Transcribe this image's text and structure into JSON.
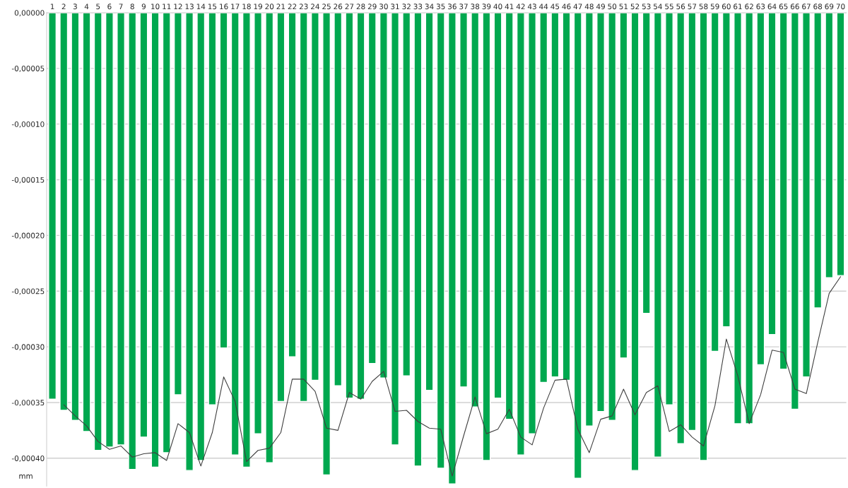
{
  "chart_data": {
    "type": "bar",
    "ylabel": "mm",
    "categories": [
      "1",
      "2",
      "3",
      "4",
      "5",
      "6",
      "7",
      "8",
      "9",
      "10",
      "11",
      "12",
      "13",
      "14",
      "15",
      "16",
      "17",
      "18",
      "19",
      "20",
      "21",
      "22",
      "23",
      "24",
      "25",
      "26",
      "27",
      "28",
      "29",
      "30",
      "31",
      "32",
      "33",
      "34",
      "35",
      "36",
      "37",
      "38",
      "39",
      "40",
      "41",
      "42",
      "43",
      "44",
      "45",
      "46",
      "47",
      "48",
      "49",
      "50",
      "51",
      "52",
      "53",
      "54",
      "55",
      "56",
      "57",
      "58",
      "59",
      "60",
      "61",
      "62",
      "63",
      "64",
      "65",
      "66",
      "67",
      "68",
      "69",
      "70"
    ],
    "series": [
      {
        "color": "#00a84f",
        "values": [
          -0.000347,
          -0.000357,
          -0.000366,
          -0.000376,
          -0.000393,
          -0.00039,
          -0.000388,
          -0.00041,
          -0.000381,
          -0.000408,
          -0.000395,
          -0.000343,
          -0.000411,
          -0.000402,
          -0.000352,
          -0.000301,
          -0.000397,
          -0.000408,
          -0.000378,
          -0.000404,
          -0.000349,
          -0.000309,
          -0.000349,
          -0.00033,
          -0.000415,
          -0.000335,
          -0.000346,
          -0.000347,
          -0.000315,
          -0.000328,
          -0.000388,
          -0.000326,
          -0.000407,
          -0.000339,
          -0.000409,
          -0.000423,
          -0.000336,
          -0.000354,
          -0.000402,
          -0.000346,
          -0.000365,
          -0.000397,
          -0.000378,
          -0.000332,
          -0.000327,
          -0.00033,
          -0.000418,
          -0.000371,
          -0.000358,
          -0.000366,
          -0.00031,
          -0.000411,
          -0.00027,
          -0.000399,
          -0.000352,
          -0.000387,
          -0.000375,
          -0.000402,
          -0.000304,
          -0.000282,
          -0.000369,
          -0.000369,
          -0.000316,
          -0.000289,
          -0.00032,
          -0.000356,
          -0.000327,
          -0.000265,
          -0.000238,
          -0.000236
        ]
      },
      {
        "type": "line",
        "color": "#404040",
        "values": [
          null,
          -0.000352,
          -0.000362,
          -0.000371,
          -0.000385,
          -0.000392,
          -0.000389,
          -0.000399,
          -0.000396,
          -0.000395,
          -0.000402,
          -0.000369,
          -0.000377,
          -0.000407,
          -0.000377,
          -0.000327,
          -0.000349,
          -0.000403,
          -0.000393,
          -0.000391,
          -0.000377,
          -0.000329,
          -0.000329,
          -0.00034,
          -0.000373,
          -0.000375,
          -0.000341,
          -0.000347,
          -0.000331,
          -0.000322,
          -0.000358,
          -0.000357,
          -0.000367,
          -0.000373,
          -0.000374,
          -0.000416,
          -0.00038,
          -0.000345,
          -0.000378,
          -0.000374,
          -0.000356,
          -0.000381,
          -0.000388,
          -0.000355,
          -0.00033,
          -0.000329,
          -0.000374,
          -0.000395,
          -0.000365,
          -0.000362,
          -0.000338,
          -0.000361,
          -0.000341,
          -0.000335,
          -0.000376,
          -0.00037,
          -0.000381,
          -0.000389,
          -0.000353,
          -0.000293,
          -0.000326,
          -0.000369,
          -0.000343,
          -0.000303,
          -0.000305,
          -0.000338,
          -0.000342,
          -0.000296,
          -0.000252,
          -0.000237
        ]
      }
    ],
    "ylim": [
      -0.000425,
      0
    ],
    "yticks": [
      {
        "value": 0,
        "label": "0,00000"
      },
      {
        "value": -5e-05,
        "label": "-0,00005"
      },
      {
        "value": -0.0001,
        "label": "-0,00010"
      },
      {
        "value": -0.00015,
        "label": "-0,00015"
      },
      {
        "value": -0.0002,
        "label": "-0,00020"
      },
      {
        "value": -0.00025,
        "label": "-0,00025"
      },
      {
        "value": -0.0003,
        "label": "-0,00030"
      },
      {
        "value": -0.00035,
        "label": "-0,00035"
      },
      {
        "value": -0.0004,
        "label": "-0,00040"
      }
    ],
    "grid": "y",
    "marker": "none"
  }
}
